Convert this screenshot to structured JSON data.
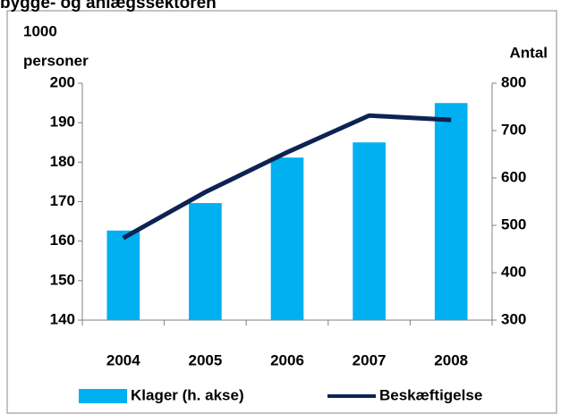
{
  "chart_data": {
    "type": "bar_line",
    "title": "bygge- og anlægssektoren",
    "ylabel": [
      "1000",
      "personer"
    ],
    "y2label": "Antal",
    "categories": [
      "2004",
      "2005",
      "2006",
      "2007",
      "2008"
    ],
    "series": [
      {
        "name": "Klager (h. akse)",
        "type": "bar",
        "axis": "y2",
        "color": "#00b0f0",
        "values": [
          489,
          547,
          643,
          675,
          758
        ]
      },
      {
        "name": "Beskæftigelse",
        "type": "line",
        "axis": "y",
        "color": "#0d2353",
        "values": [
          160.8,
          172.4,
          182.5,
          191.8,
          190.7
        ]
      }
    ],
    "ylim": [
      140,
      200
    ],
    "yticks": [
      140,
      150,
      160,
      170,
      180,
      190,
      200
    ],
    "y2lim": [
      300,
      800
    ],
    "y2ticks": [
      300,
      400,
      500,
      600,
      700,
      800
    ]
  }
}
